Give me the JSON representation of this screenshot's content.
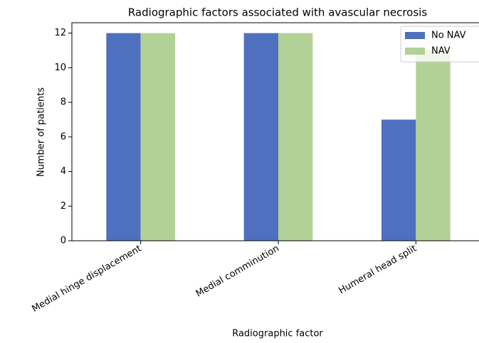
{
  "chart_data": {
    "type": "bar",
    "title": "Radiographic factors associated with avascular necrosis",
    "x_label": "Radiographic factor",
    "y_label": "Number of patients",
    "categories": [
      "Medial hinge displacement",
      "Medial comminution",
      "Humeral head split"
    ],
    "series": [
      {
        "name": "No NAV",
        "color": "#4f6fbf",
        "values": [
          12,
          12,
          7
        ]
      },
      {
        "name": "NAV",
        "color": "#b2d197",
        "values": [
          12,
          12,
          11
        ]
      }
    ],
    "ylim": [
      0,
      12.6
    ],
    "yticks": [
      0,
      2,
      4,
      6,
      8,
      10,
      12
    ],
    "legend": "upper right"
  }
}
